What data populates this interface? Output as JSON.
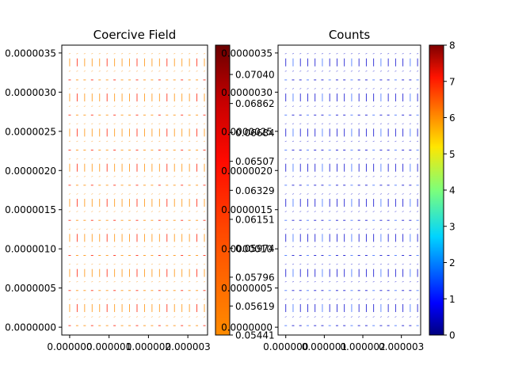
{
  "chart_data": [
    {
      "type": "scatter",
      "subtype": "quiver",
      "title": "Coercive Field",
      "xlabel": "",
      "ylabel": "",
      "x_ticks": [
        "0.000000",
        "0.000001",
        "0.000002",
        "0.000003"
      ],
      "x_tick_values": [
        0,
        1e-06,
        2e-06,
        3e-06
      ],
      "xlim": [
        -2e-07,
        3.5e-06
      ],
      "y_ticks": [
        "0.0000000",
        "0.0000005",
        "0.0000010",
        "0.0000015",
        "0.0000020",
        "0.0000025",
        "0.0000030",
        "0.0000035"
      ],
      "y_tick_values": [
        0,
        5e-07,
        1e-06,
        1.5e-06,
        2e-06,
        2.5e-06,
        3e-06,
        3.5e-06
      ],
      "ylim": [
        -1e-07,
        3.6e-06
      ],
      "grid": false,
      "grid_x": [
        0,
        2.2e-06,
        4.4e-06,
        6.6e-06,
        8.8e-06,
        1e-06,
        1.2e-06,
        1.4e-06,
        1.6e-06,
        1.8e-06,
        2e-06,
        2.2e-06,
        2.4e-06,
        2.6e-06,
        2.8e-06,
        3e-06,
        3.2e-06
      ],
      "grid_y_count": 32,
      "grid_y_start": 0,
      "grid_y_step": 1.12e-07,
      "arrow_color_range": [
        "#ff8c00",
        "#ff1a00"
      ],
      "colorbar": {
        "colormap": "hot",
        "min": 0.05441,
        "max": 0.0722,
        "ticks": [
          "0.05441",
          "0.05619",
          "0.05796",
          "0.05974",
          "0.06151",
          "0.06329",
          "0.06507",
          "0.06684",
          "0.06862",
          "0.07040"
        ],
        "tick_values": [
          0.05441,
          0.05619,
          0.05796,
          0.05974,
          0.06151,
          0.06329,
          0.06507,
          0.06684,
          0.06862,
          0.0704
        ]
      }
    },
    {
      "type": "scatter",
      "subtype": "quiver",
      "title": "Counts",
      "xlabel": "",
      "ylabel": "",
      "x_ticks": [
        "0.000000",
        "0.000001",
        "0.000002",
        "0.000003"
      ],
      "x_tick_values": [
        0,
        1e-06,
        2e-06,
        3e-06
      ],
      "xlim": [
        -2e-07,
        3.5e-06
      ],
      "y_ticks": [
        "0.0000000",
        "0.0000005",
        "0.0000010",
        "0.0000015",
        "0.0000020",
        "0.0000025",
        "0.0000030",
        "0.0000035"
      ],
      "y_tick_values": [
        0,
        5e-07,
        1e-06,
        1.5e-06,
        2e-06,
        2.5e-06,
        3e-06,
        3.5e-06
      ],
      "ylim": [
        -1e-07,
        3.6e-06
      ],
      "grid": false,
      "arrow_color_range": [
        "#0000cd",
        "#3a6bff"
      ],
      "colorbar": {
        "colormap": "jet",
        "min": 0,
        "max": 8,
        "ticks": [
          "0",
          "1",
          "2",
          "3",
          "4",
          "5",
          "6",
          "7",
          "8"
        ],
        "tick_values": [
          0,
          1,
          2,
          3,
          4,
          5,
          6,
          7,
          8
        ]
      }
    }
  ]
}
